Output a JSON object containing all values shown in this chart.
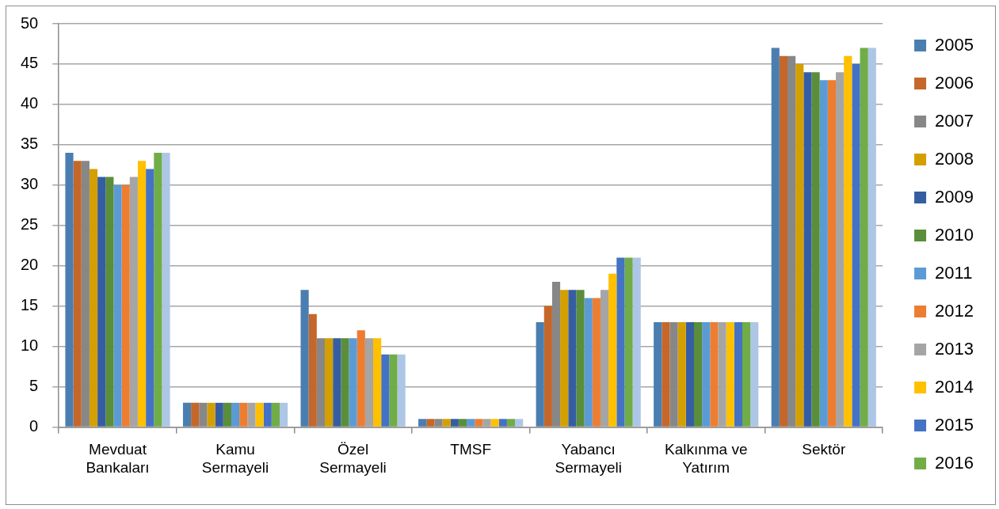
{
  "chart_data": {
    "type": "bar",
    "categories": [
      "Mevduat Bankaları",
      "Kamu Sermayeli",
      "Özel Sermayeli",
      "TMSF",
      "Yabancı Sermayeli",
      "Kalkınma ve Yatırım",
      "Sektör"
    ],
    "series": [
      {
        "name": "2005",
        "color": "#4a7eb0",
        "values": [
          34,
          3,
          17,
          1,
          13,
          13,
          47
        ]
      },
      {
        "name": "2006",
        "color": "#c5672a",
        "values": [
          33,
          3,
          14,
          1,
          15,
          13,
          46
        ]
      },
      {
        "name": "2007",
        "color": "#878787",
        "values": [
          33,
          3,
          11,
          1,
          18,
          13,
          46
        ]
      },
      {
        "name": "2008",
        "color": "#d49f00",
        "values": [
          32,
          3,
          11,
          1,
          17,
          13,
          45
        ]
      },
      {
        "name": "2009",
        "color": "#355ea2",
        "values": [
          31,
          3,
          11,
          1,
          17,
          13,
          44
        ]
      },
      {
        "name": "2010",
        "color": "#5a8e3a",
        "values": [
          31,
          3,
          11,
          1,
          17,
          13,
          44
        ]
      },
      {
        "name": "2011",
        "color": "#5b9bd5",
        "values": [
          30,
          3,
          11,
          1,
          16,
          13,
          43
        ]
      },
      {
        "name": "2012",
        "color": "#ed7d31",
        "values": [
          30,
          3,
          12,
          1,
          16,
          13,
          43
        ]
      },
      {
        "name": "2013",
        "color": "#a5a5a5",
        "values": [
          31,
          3,
          11,
          1,
          17,
          13,
          44
        ]
      },
      {
        "name": "2014",
        "color": "#ffc000",
        "values": [
          33,
          3,
          11,
          1,
          19,
          13,
          46
        ]
      },
      {
        "name": "2015",
        "color": "#4472c4",
        "values": [
          32,
          3,
          9,
          1,
          21,
          13,
          45
        ]
      },
      {
        "name": "2016",
        "color": "#70ad47",
        "values": [
          34,
          3,
          9,
          1,
          21,
          13,
          47
        ]
      },
      {
        "color": "#aec6e6",
        "values": [
          34,
          3,
          9,
          1,
          21,
          13,
          47
        ]
      }
    ],
    "ylim": [
      0,
      50
    ],
    "yticks": [
      0,
      5,
      10,
      15,
      20,
      25,
      30,
      35,
      40,
      45,
      50
    ],
    "grid": "y",
    "legend": "right"
  }
}
